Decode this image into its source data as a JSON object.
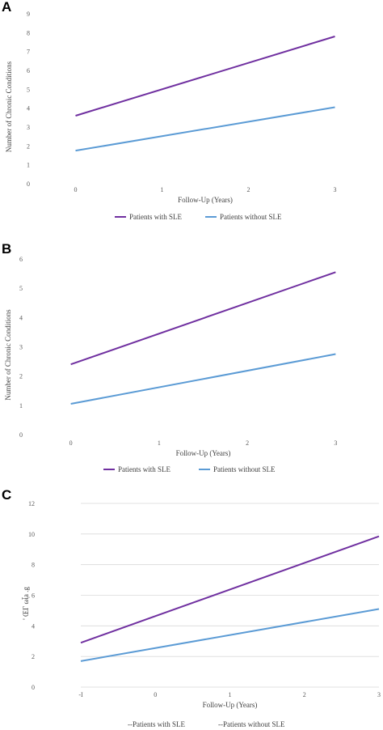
{
  "chart_data": [
    {
      "panel_label": "A",
      "type": "line",
      "xlabel": "Follow-Up (Years)",
      "ylabel": "Number of Chronic Conditions",
      "x_ticks": [
        0,
        1,
        2,
        3
      ],
      "y_ticks": [
        0,
        1,
        2,
        3,
        4,
        5,
        6,
        7,
        8,
        9
      ],
      "xlim": [
        -0.5,
        3.5
      ],
      "ylim": [
        0,
        9
      ],
      "grid": false,
      "legend": "bottom",
      "series": [
        {
          "name": "Patients with SLE",
          "color": "#7030a0",
          "x": [
            0,
            3
          ],
          "y": [
            3.6,
            7.8
          ]
        },
        {
          "name": "Patients without SLE",
          "color": "#5b9bd5",
          "x": [
            0,
            3
          ],
          "y": [
            1.75,
            4.05
          ]
        }
      ]
    },
    {
      "panel_label": "B",
      "type": "line",
      "xlabel": "Follow-Up (Years)",
      "ylabel": "Number of Chronic Conditions",
      "x_ticks": [
        0,
        1,
        2,
        3
      ],
      "y_ticks": [
        0,
        1,
        2,
        3,
        4,
        5,
        6
      ],
      "xlim": [
        -0.5,
        3.5
      ],
      "ylim": [
        0,
        6
      ],
      "grid": false,
      "legend": "bottom",
      "series": [
        {
          "name": "Patients with SLE",
          "color": "#7030a0",
          "x": [
            0,
            3
          ],
          "y": [
            2.4,
            5.55
          ]
        },
        {
          "name": "Patients without SLE",
          "color": "#5b9bd5",
          "x": [
            0,
            3
          ],
          "y": [
            1.05,
            2.75
          ]
        }
      ]
    },
    {
      "panel_label": "C",
      "type": "line",
      "xlabel": "Follow-Up (Years)",
      "ylabel": "' ŒΓ ωἶ̣a .g",
      "x_ticks": [
        -1,
        0,
        1,
        2,
        3
      ],
      "x_tick_labels": [
        "-I",
        "0",
        "1",
        "2",
        "3"
      ],
      "y_ticks": [
        0,
        2,
        4,
        6,
        8,
        10,
        12
      ],
      "xlim": [
        -1,
        3
      ],
      "ylim": [
        0,
        12
      ],
      "grid": true,
      "legend": "bottom",
      "legend_labels": [
        "--Patients with SLE",
        "--Patients without SLE"
      ],
      "series": [
        {
          "name": "Patients with SLE",
          "color": "#7030a0",
          "x": [
            -1,
            3
          ],
          "y": [
            2.9,
            9.85
          ]
        },
        {
          "name": "Patients without SLE",
          "color": "#5b9bd5",
          "x": [
            -1,
            3
          ],
          "y": [
            1.7,
            5.1
          ]
        }
      ]
    }
  ]
}
